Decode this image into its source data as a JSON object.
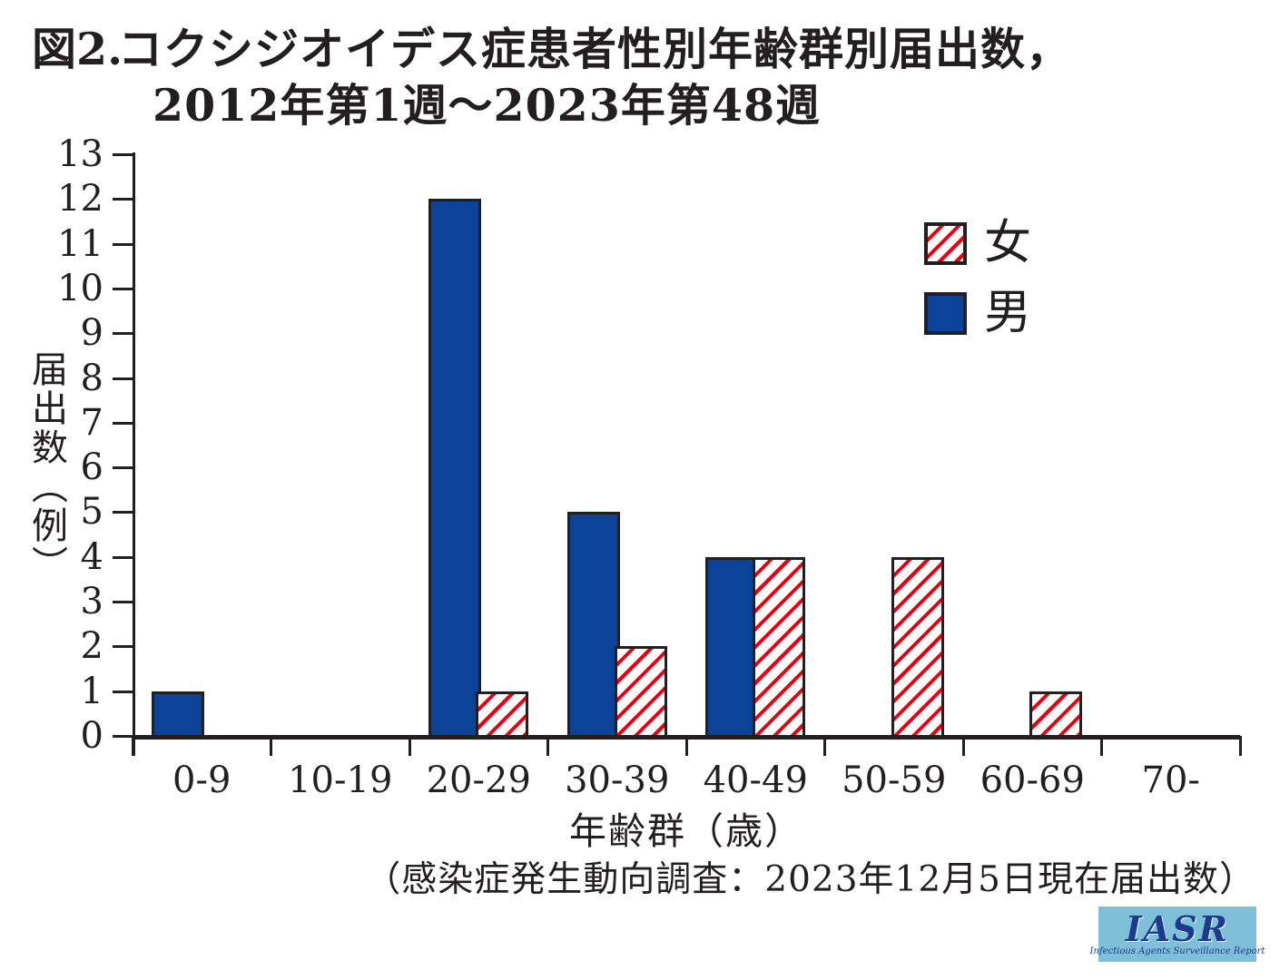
{
  "title": {
    "figure_label": "図2.",
    "line1": "コクシジオイデス症患者性別年齢群別届出数，",
    "line2": "2012年第1週〜2023年第48週"
  },
  "chart_data": {
    "type": "bar",
    "title": "図2. コクシジオイデス症患者性別年齢群別届出数，2012年第1週〜2023年第48週",
    "categories": [
      "0-9",
      "10-19",
      "20-29",
      "30-39",
      "40-49",
      "50-59",
      "60-69",
      "70-"
    ],
    "series": [
      {
        "name": "男",
        "position_in_group": "left",
        "style": "solid",
        "color": "#0b4399",
        "values": [
          1,
          0,
          12,
          5,
          4,
          0,
          0,
          0
        ]
      },
      {
        "name": "女",
        "position_in_group": "right",
        "style": "diagonal-hatch",
        "hatch_color": "#e60012",
        "values": [
          0,
          0,
          1,
          2,
          4,
          4,
          1,
          0
        ]
      }
    ],
    "xlabel": "年齢群（歳）",
    "ylabel": "届出数（例）",
    "ylim": [
      0,
      13
    ],
    "yticks": [
      0,
      1,
      2,
      3,
      4,
      5,
      6,
      7,
      8,
      9,
      10,
      11,
      12,
      13
    ],
    "grid": false,
    "legend_position": "upper-right"
  },
  "legend": {
    "items": [
      {
        "label": "女",
        "style": "diagonal-hatch"
      },
      {
        "label": "男",
        "style": "solid"
      }
    ]
  },
  "footnote": "（感染症発生動向調査：2023年12月5日現在届出数）",
  "logo": {
    "text": "IASR",
    "subtext": "Infectious Agents Surveillance Report",
    "background": "#7dc0d7",
    "text_color": "#1e3a8f"
  },
  "colors": {
    "ink": "#231f20",
    "male_bar": "#0b4399",
    "female_hatch": "#e60012",
    "background": "#ffffff"
  }
}
